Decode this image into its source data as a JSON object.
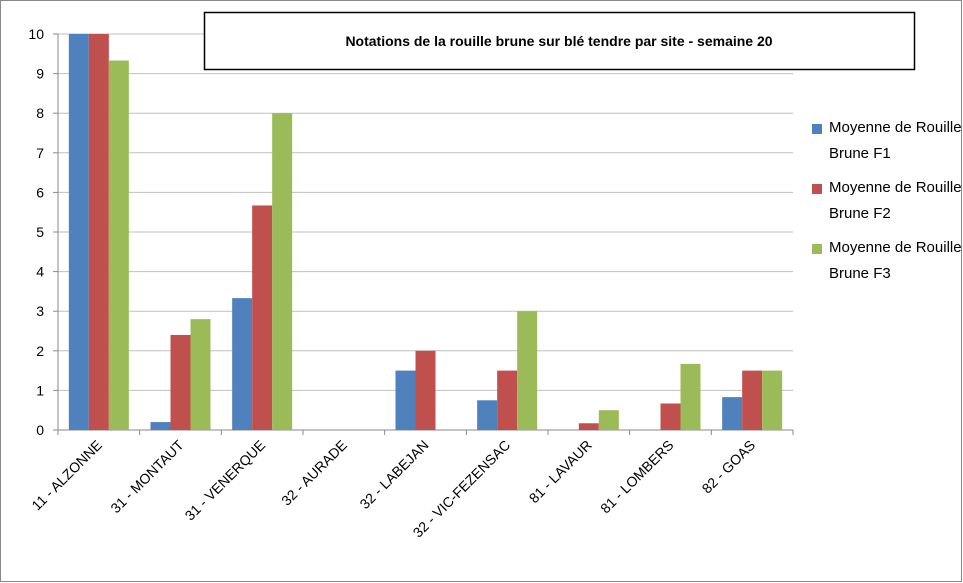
{
  "chart_data": {
    "type": "bar",
    "title": "Notations de la rouille brune sur blé tendre par site - semaine 20",
    "categories": [
      "11 - ALZONNE",
      "31 - MONTAUT",
      "31 - VENERQUE",
      "32 - AURADE",
      "32 - LABEJAN",
      "32 - VIC-FEZENSAC",
      "81 - LAVAUR",
      "81 - LOMBERS",
      "82 - GOAS"
    ],
    "series": [
      {
        "name": "Moyenne de Rouille Brune F1",
        "color": "#4f81bd",
        "values": [
          10,
          0.2,
          3.33,
          0,
          1.5,
          0.75,
          0,
          0,
          0.83
        ]
      },
      {
        "name": "Moyenne de Rouille Brune F2",
        "color": "#c0504d",
        "values": [
          10,
          2.4,
          5.67,
          0,
          2,
          1.5,
          0.17,
          0.67,
          1.5
        ]
      },
      {
        "name": "Moyenne de Rouille Brune F3",
        "color": "#9bbb59",
        "values": [
          9.33,
          2.8,
          8,
          0,
          0,
          3,
          0.5,
          1.67,
          1.5
        ]
      }
    ],
    "ylim": [
      0,
      10
    ],
    "yticks": [
      0,
      1,
      2,
      3,
      4,
      5,
      6,
      7,
      8,
      9,
      10
    ],
    "grid": true,
    "legend": "right"
  }
}
